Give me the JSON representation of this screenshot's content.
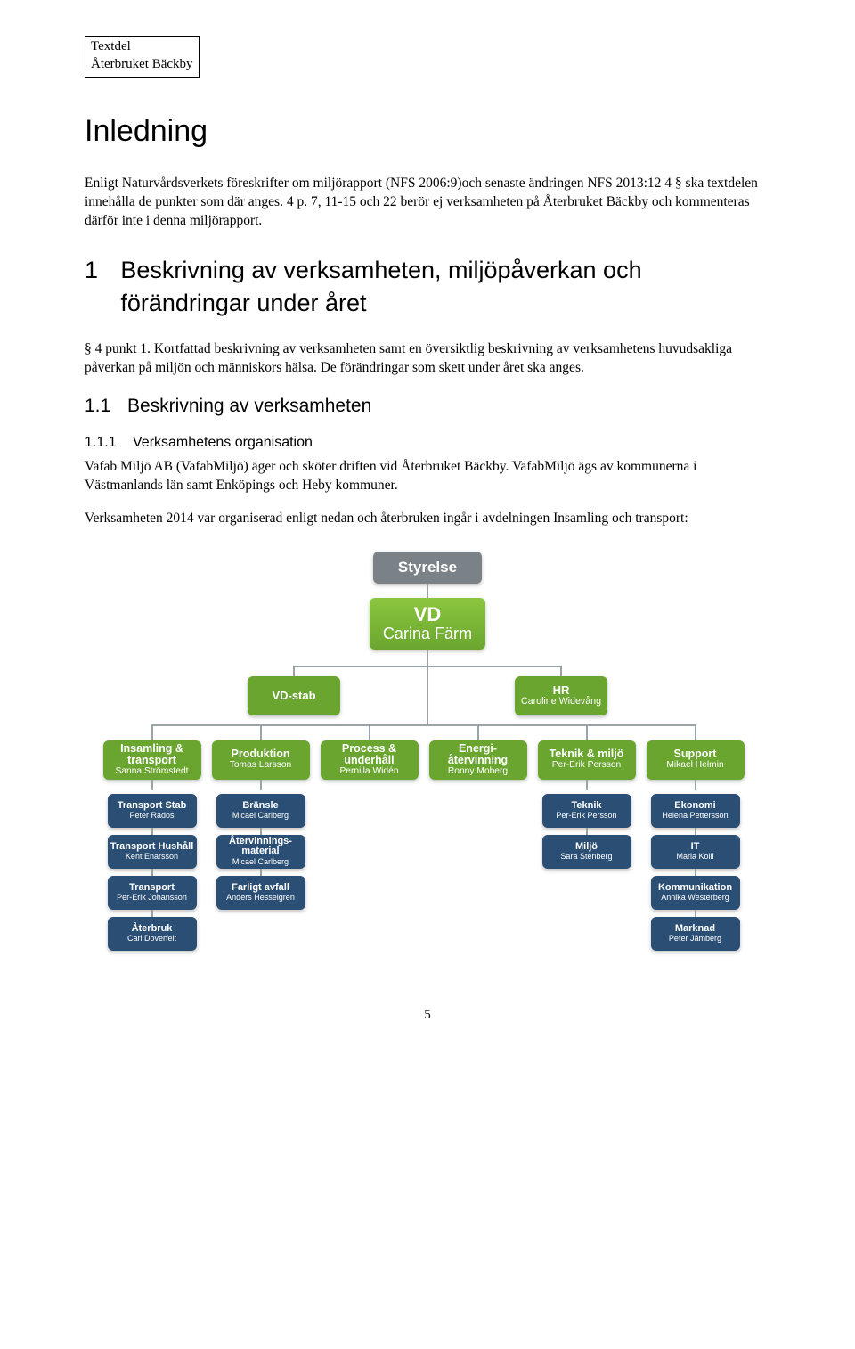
{
  "header": {
    "line1": "Textdel",
    "line2": "Återbruket Bäckby"
  },
  "title": "Inledning",
  "intro_p1": "Enligt Naturvårdsverkets föreskrifter om miljörapport (NFS 2006:9)och senaste ändringen NFS 2013:12 4 § ska textdelen innehålla de punkter som där anges. 4 p. 7, 11-15 och 22 berör ej verksamheten på Återbruket Bäckby och kommenteras därför inte i denna miljörapport.",
  "sec1": {
    "num": "1",
    "title": "Beskrivning av verksamheten, miljöpåverkan och förändringar under året"
  },
  "p_punkt1": "§ 4 punkt 1. Kortfattad beskrivning av verksamheten samt en översiktlig beskrivning av verksamhetens huvudsakliga påverkan på miljön och människors hälsa. De förändringar som skett under året ska anges.",
  "sub11": {
    "num": "1.1",
    "title": "Beskrivning av verksamheten"
  },
  "sub111": {
    "num": "1.1.1",
    "title": "Verksamhetens organisation"
  },
  "p111a": "Vafab Miljö AB (VafabMiljö) äger och sköter driften vid Återbruket Bäckby. VafabMiljö ägs av kommunerna i Västmanlands län samt Enköpings och Heby kommuner.",
  "p111b": "Verksamheten 2014 var organiserad enligt nedan och återbruken ingår i avdelningen Insamling och transport:",
  "page_num": "5",
  "org": {
    "colors": {
      "gray": "#7a8288",
      "green": "#6aa62f",
      "green_grad_top": "#8cc63f",
      "blue": "#2b4f74",
      "line": "#9aa3a7"
    },
    "lvl0": {
      "title": "Styrelse"
    },
    "lvl1": {
      "title": "VD",
      "sub": "Carina Färm"
    },
    "lvl2": [
      {
        "title": "VD-stab",
        "sub": ""
      },
      {
        "title": "HR",
        "sub": "Caroline Widevång"
      }
    ],
    "lvl3": [
      {
        "title": "Insamling & transport",
        "sub": "Sanna Strömstedt"
      },
      {
        "title": "Produktion",
        "sub": "Tomas Larsson"
      },
      {
        "title": "Process & underhåll",
        "sub": "Pernilla Widén"
      },
      {
        "title": "Energi-återvinning",
        "sub": "Ronny Moberg"
      },
      {
        "title": "Teknik & miljö",
        "sub": "Per-Erik Persson"
      },
      {
        "title": "Support",
        "sub": "Mikael Helmin"
      }
    ],
    "lvl4": {
      "col0": [
        {
          "title": "Transport Stab",
          "sub": "Peter Rados"
        },
        {
          "title": "Transport Hushåll",
          "sub": "Kent Enarsson"
        },
        {
          "title": "Transport",
          "sub": "Per-Erik Johansson"
        },
        {
          "title": "Återbruk",
          "sub": "Carl Doverfelt"
        }
      ],
      "col1": [
        {
          "title": "Bränsle",
          "sub": "Micael Carlberg"
        },
        {
          "title": "Återvinnings-material",
          "sub1": "Micael Carlberg"
        },
        {
          "title": "Farligt avfall",
          "sub": "Anders Hesselgren"
        }
      ],
      "col4": [
        {
          "title": "Teknik",
          "sub": "Per-Erik Persson"
        },
        {
          "title": "Miljö",
          "sub": "Sara Stenberg"
        }
      ],
      "col5": [
        {
          "title": "Ekonomi",
          "sub": "Helena Pettersson"
        },
        {
          "title": "IT",
          "sub": "Maria Kolli"
        },
        {
          "title": "Kommunikation",
          "sub": "Annika Westerberg"
        },
        {
          "title": "Marknad",
          "sub": "Peter Jämberg"
        }
      ]
    }
  }
}
